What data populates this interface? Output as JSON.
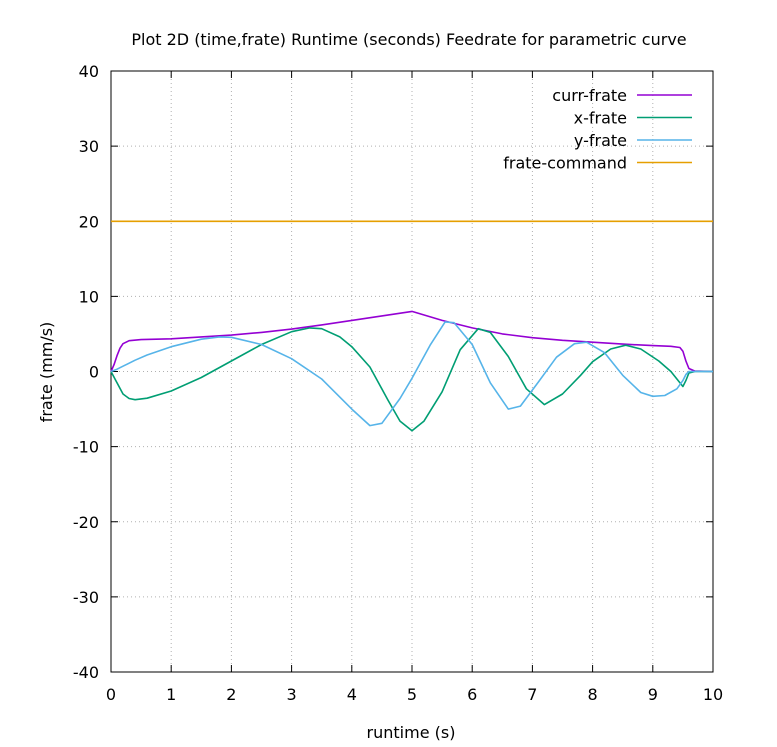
{
  "chart_data": {
    "type": "line",
    "title": "Plot 2D (time,frate) Runtime (seconds) Feedrate for parametric curve",
    "xlabel": "runtime (s)",
    "ylabel": "frate (mm/s)",
    "xlim": [
      0,
      10
    ],
    "ylim": [
      -40,
      40
    ],
    "xticks": [
      0,
      1,
      2,
      3,
      4,
      5,
      6,
      7,
      8,
      9,
      10
    ],
    "yticks": [
      -40,
      -30,
      -20,
      -10,
      0,
      10,
      20,
      30,
      40
    ],
    "grid": true,
    "legend_position": "top-right",
    "series": [
      {
        "name": "curr-frate",
        "color": "#9400d3",
        "points": [
          [
            0,
            0
          ],
          [
            0.05,
            0.9
          ],
          [
            0.1,
            2.1
          ],
          [
            0.15,
            3.1
          ],
          [
            0.2,
            3.7
          ],
          [
            0.3,
            4.1
          ],
          [
            0.5,
            4.25
          ],
          [
            1,
            4.35
          ],
          [
            1.5,
            4.6
          ],
          [
            2,
            4.85
          ],
          [
            2.5,
            5.2
          ],
          [
            3,
            5.65
          ],
          [
            3.5,
            6.2
          ],
          [
            4,
            6.8
          ],
          [
            4.5,
            7.4
          ],
          [
            5,
            8
          ],
          [
            5.5,
            6.8
          ],
          [
            6,
            5.8
          ],
          [
            6.5,
            5
          ],
          [
            7,
            4.5
          ],
          [
            7.5,
            4.15
          ],
          [
            8,
            3.9
          ],
          [
            8.5,
            3.65
          ],
          [
            9,
            3.45
          ],
          [
            9.3,
            3.35
          ],
          [
            9.45,
            3.2
          ],
          [
            9.5,
            2.7
          ],
          [
            9.55,
            1.4
          ],
          [
            9.6,
            0.4
          ],
          [
            9.7,
            0.05
          ],
          [
            10,
            0
          ]
        ]
      },
      {
        "name": "x-frate",
        "color": "#009e73",
        "points": [
          [
            0,
            0
          ],
          [
            0.1,
            -1.5
          ],
          [
            0.2,
            -3
          ],
          [
            0.3,
            -3.6
          ],
          [
            0.4,
            -3.75
          ],
          [
            0.6,
            -3.55
          ],
          [
            1,
            -2.6
          ],
          [
            1.5,
            -0.8
          ],
          [
            2,
            1.4
          ],
          [
            2.5,
            3.6
          ],
          [
            3,
            5.3
          ],
          [
            3.3,
            5.8
          ],
          [
            3.5,
            5.7
          ],
          [
            3.8,
            4.6
          ],
          [
            4,
            3.3
          ],
          [
            4.3,
            0.6
          ],
          [
            4.6,
            -3.8
          ],
          [
            4.8,
            -6.6
          ],
          [
            5,
            -7.9
          ],
          [
            5.2,
            -6.6
          ],
          [
            5.5,
            -2.7
          ],
          [
            5.8,
            2.9
          ],
          [
            6.1,
            5.7
          ],
          [
            6.3,
            5.2
          ],
          [
            6.6,
            2
          ],
          [
            6.9,
            -2.3
          ],
          [
            7.2,
            -4.4
          ],
          [
            7.5,
            -3
          ],
          [
            7.8,
            -0.5
          ],
          [
            8,
            1.3
          ],
          [
            8.3,
            3
          ],
          [
            8.55,
            3.5
          ],
          [
            8.8,
            3
          ],
          [
            9.1,
            1.4
          ],
          [
            9.3,
            0
          ],
          [
            9.5,
            -2
          ],
          [
            9.55,
            -1.2
          ],
          [
            9.6,
            -0.2
          ],
          [
            9.7,
            0
          ],
          [
            10,
            0
          ]
        ]
      },
      {
        "name": "y-frate",
        "color": "#56b4e9",
        "points": [
          [
            0,
            0
          ],
          [
            0.1,
            0.3
          ],
          [
            0.2,
            0.7
          ],
          [
            0.4,
            1.5
          ],
          [
            0.6,
            2.2
          ],
          [
            1,
            3.3
          ],
          [
            1.5,
            4.3
          ],
          [
            1.8,
            4.6
          ],
          [
            2,
            4.55
          ],
          [
            2.5,
            3.6
          ],
          [
            3,
            1.7
          ],
          [
            3.5,
            -1
          ],
          [
            4,
            -5
          ],
          [
            4.3,
            -7.2
          ],
          [
            4.5,
            -6.9
          ],
          [
            4.8,
            -3.6
          ],
          [
            5,
            -0.9
          ],
          [
            5.3,
            3.5
          ],
          [
            5.55,
            6.6
          ],
          [
            5.7,
            6.5
          ],
          [
            6,
            3.6
          ],
          [
            6.3,
            -1.5
          ],
          [
            6.6,
            -5
          ],
          [
            6.8,
            -4.6
          ],
          [
            7.1,
            -1.4
          ],
          [
            7.4,
            1.9
          ],
          [
            7.7,
            3.7
          ],
          [
            7.9,
            3.9
          ],
          [
            8.2,
            2.5
          ],
          [
            8.5,
            -0.5
          ],
          [
            8.8,
            -2.8
          ],
          [
            9,
            -3.3
          ],
          [
            9.2,
            -3.2
          ],
          [
            9.4,
            -2.3
          ],
          [
            9.5,
            -1.2
          ],
          [
            9.55,
            -0.4
          ],
          [
            9.6,
            0
          ],
          [
            10,
            0
          ]
        ]
      },
      {
        "name": "frate-command",
        "color": "#e69f00",
        "points": [
          [
            0,
            20
          ],
          [
            10,
            20
          ]
        ]
      }
    ]
  }
}
